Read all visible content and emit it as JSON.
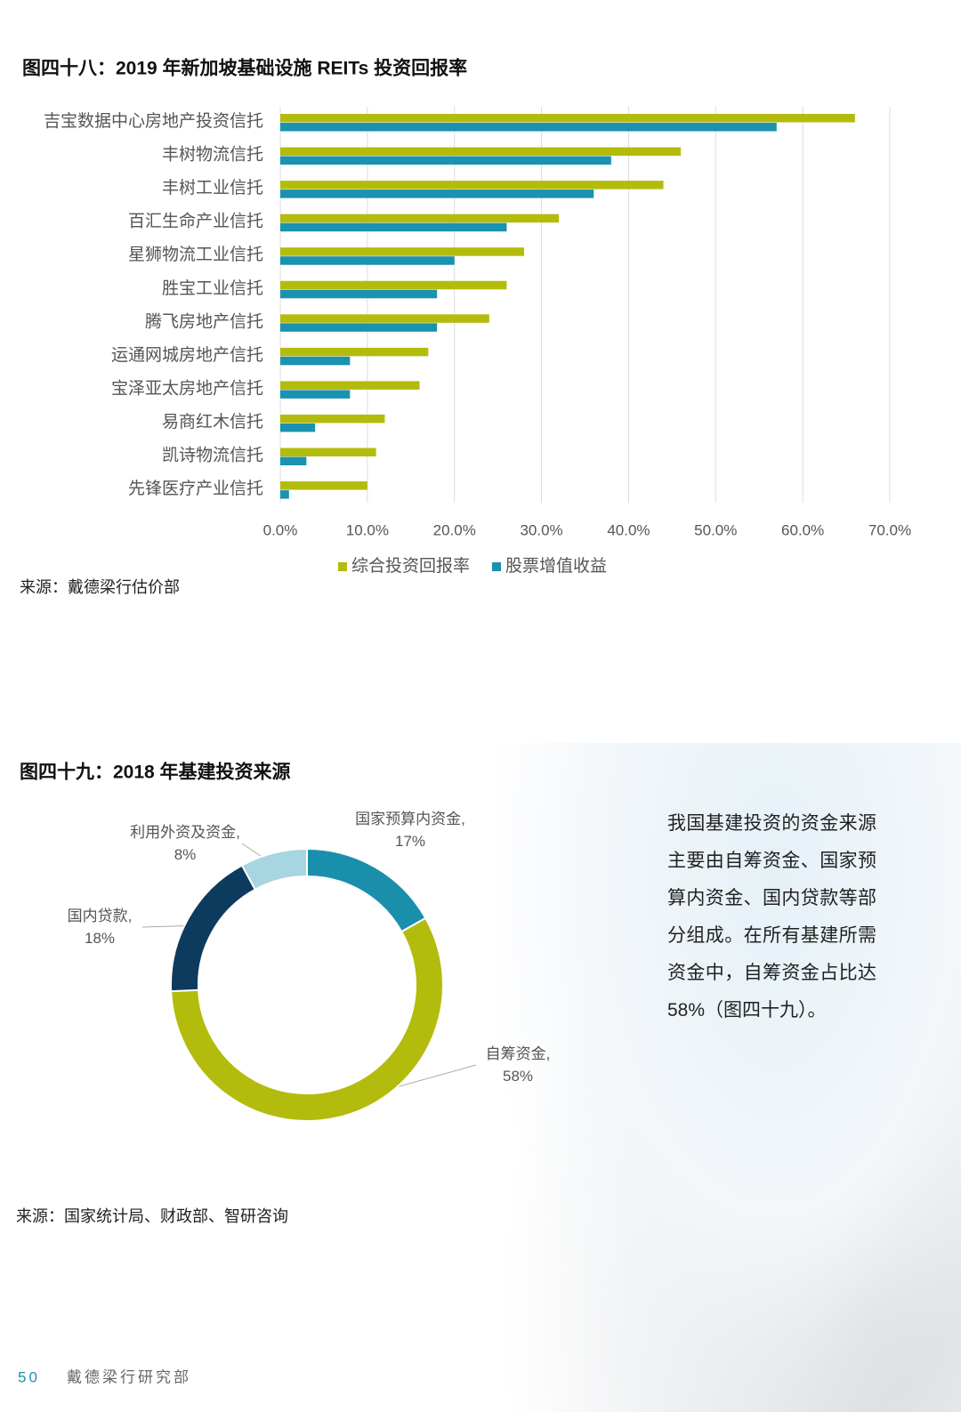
{
  "chart_data": [
    {
      "type": "bar",
      "orientation": "horizontal",
      "title": "图四十八：2019 年新加坡基础设施 REITs 投资回报率",
      "categories": [
        "吉宝数据中心房地产投资信托",
        "丰树物流信托",
        "丰树工业信托",
        "百汇生命产业信托",
        "星狮物流工业信托",
        "胜宝工业信托",
        "腾飞房地产信托",
        "运通网城房地产信托",
        "宝泽亚太房地产信托",
        "易商红木信托",
        "凯诗物流信托",
        "先锋医疗产业信托"
      ],
      "series": [
        {
          "name": "综合投资回报率",
          "color": "#b3bc0c",
          "values": [
            66,
            46,
            44,
            32,
            28,
            26,
            24,
            17,
            16,
            12,
            11,
            10
          ]
        },
        {
          "name": "股票增值收益",
          "color": "#1a92b0",
          "values": [
            57,
            38,
            36,
            26,
            20,
            18,
            18,
            8,
            8,
            4,
            3,
            1
          ]
        }
      ],
      "xlim": [
        0,
        70
      ],
      "xticks": [
        {
          "value": 0,
          "label": "0.0%"
        },
        {
          "value": 10,
          "label": "10.0%"
        },
        {
          "value": 20,
          "label": "20.0%"
        },
        {
          "value": 30,
          "label": "30.0%"
        },
        {
          "value": 40,
          "label": "40.0%"
        },
        {
          "value": 50,
          "label": "50.0%"
        },
        {
          "value": 60,
          "label": "60.0%"
        },
        {
          "value": 70,
          "label": "70.0%"
        }
      ],
      "grid": true,
      "legend": "bottom",
      "source": "来源：戴德梁行估价部"
    },
    {
      "type": "pie",
      "donut": true,
      "title": "图四十九：2018 年基建投资来源",
      "labels": [
        "国家预算内资金, 17%",
        "自筹资金, 58%",
        "国内贷款, 18%",
        "利用外资及资金, 8%"
      ],
      "values": [
        17,
        58,
        18,
        8
      ],
      "colors": [
        "#1a8fab",
        "#b3bc0c",
        "#0d3b5e",
        "#a7d5e0"
      ],
      "source": "来源：国家统计局、财政部、智研咨询"
    }
  ],
  "paragraph": "我国基建投资的资金来源主要由自筹资金、国家预算内资金、国内贷款等部分组成。在所有基建所需资金中，自筹资金占比达 58%（图四十九）。",
  "footer": {
    "page": "50",
    "text": "戴德梁行研究部"
  }
}
